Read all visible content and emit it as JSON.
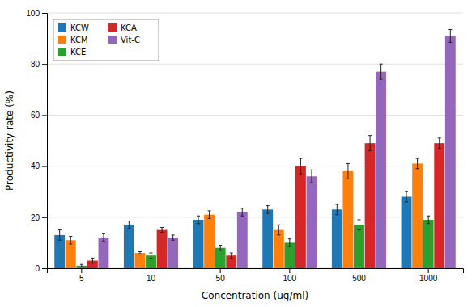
{
  "chart_data": {
    "type": "bar",
    "categories": [
      "5",
      "10",
      "50",
      "100",
      "500",
      "1000"
    ],
    "series": [
      {
        "name": "KCW",
        "values": [
          13,
          17,
          19,
          23,
          23,
          28
        ],
        "errors": [
          2,
          1.5,
          1.5,
          1.5,
          2,
          2
        ]
      },
      {
        "name": "KCM",
        "values": [
          11,
          6,
          21,
          15,
          38,
          41
        ],
        "errors": [
          1.5,
          0.5,
          1.5,
          2,
          3,
          2
        ]
      },
      {
        "name": "KCE",
        "values": [
          1,
          5,
          8,
          10,
          17,
          19
        ],
        "errors": [
          0.5,
          1,
          1,
          1.5,
          2,
          1.5
        ]
      },
      {
        "name": "KCA",
        "values": [
          3,
          15,
          5,
          40,
          49,
          49
        ],
        "errors": [
          1,
          1,
          1,
          3,
          3,
          2
        ]
      },
      {
        "name": "Vit-C",
        "values": [
          12,
          12,
          22,
          36,
          77,
          91
        ],
        "errors": [
          1.5,
          1,
          1.5,
          2.5,
          3,
          2.5
        ]
      }
    ],
    "xlabel": "Concentration (ug/ml)",
    "ylabel": "Productivity rate (%)",
    "ylim": [
      0,
      100
    ],
    "yticks": [
      0,
      20,
      40,
      60,
      80,
      100
    ],
    "grid": true,
    "legend": "upper-left"
  }
}
